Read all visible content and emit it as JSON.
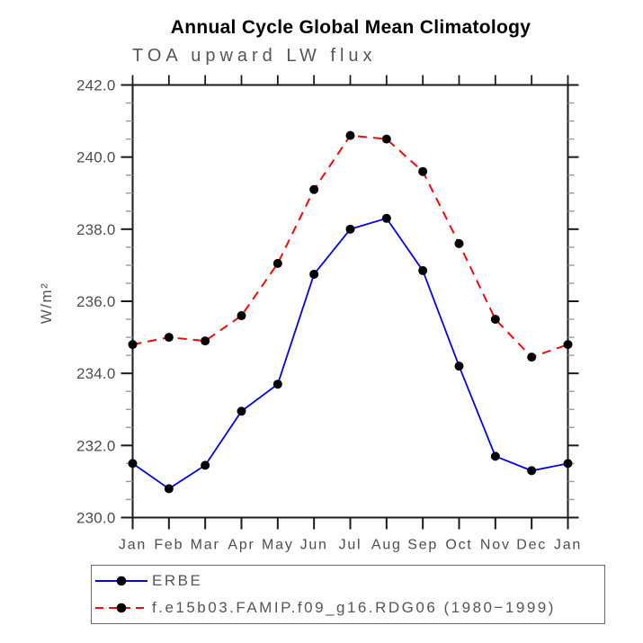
{
  "accent_colors": {
    "erbe_line": "#0202e6",
    "model_line": "#f40707",
    "marker": "#000000",
    "axis": "#1a1a1a",
    "minor_tick": "#9a9a9a",
    "text_gray": "#565656"
  },
  "chart_data": {
    "type": "line",
    "title": "Annual Cycle Global Mean Climatology",
    "subtitle": "TOA upward LW flux",
    "ylabel": "W/m²",
    "xlabel": "",
    "x_categories": [
      "Jan",
      "Feb",
      "Mar",
      "Apr",
      "May",
      "Jun",
      "Jul",
      "Aug",
      "Sep",
      "Oct",
      "Nov",
      "Dec",
      "Jan"
    ],
    "ylim": [
      230.0,
      242.0
    ],
    "ytick_interval": 2.0,
    "ytick_minor_interval": 0.5,
    "ytick_labels": [
      "230.0",
      "232.0",
      "234.0",
      "236.0",
      "238.0",
      "240.0",
      "242.0"
    ],
    "grid": false,
    "legend_position": "bottom-left-box",
    "series": [
      {
        "name": "ERBE",
        "color": "#0202e6",
        "line_style": "solid",
        "line_width": 1.8,
        "marker": "filled-circle",
        "marker_color": "#000000",
        "values": [
          231.5,
          230.8,
          231.45,
          232.95,
          233.7,
          236.75,
          238.0,
          238.3,
          236.85,
          234.2,
          231.7,
          231.3,
          231.5
        ]
      },
      {
        "name": "f.e15b03.FAMIP.f09_g16.RDG06 (1980−1999)",
        "color": "#f40707",
        "line_style": "dashed",
        "line_width": 2.0,
        "marker": "filled-circle",
        "marker_color": "#000000",
        "values": [
          234.8,
          235.0,
          234.9,
          235.6,
          237.05,
          239.1,
          240.6,
          240.5,
          239.6,
          237.6,
          235.5,
          234.45,
          234.8
        ]
      }
    ]
  }
}
